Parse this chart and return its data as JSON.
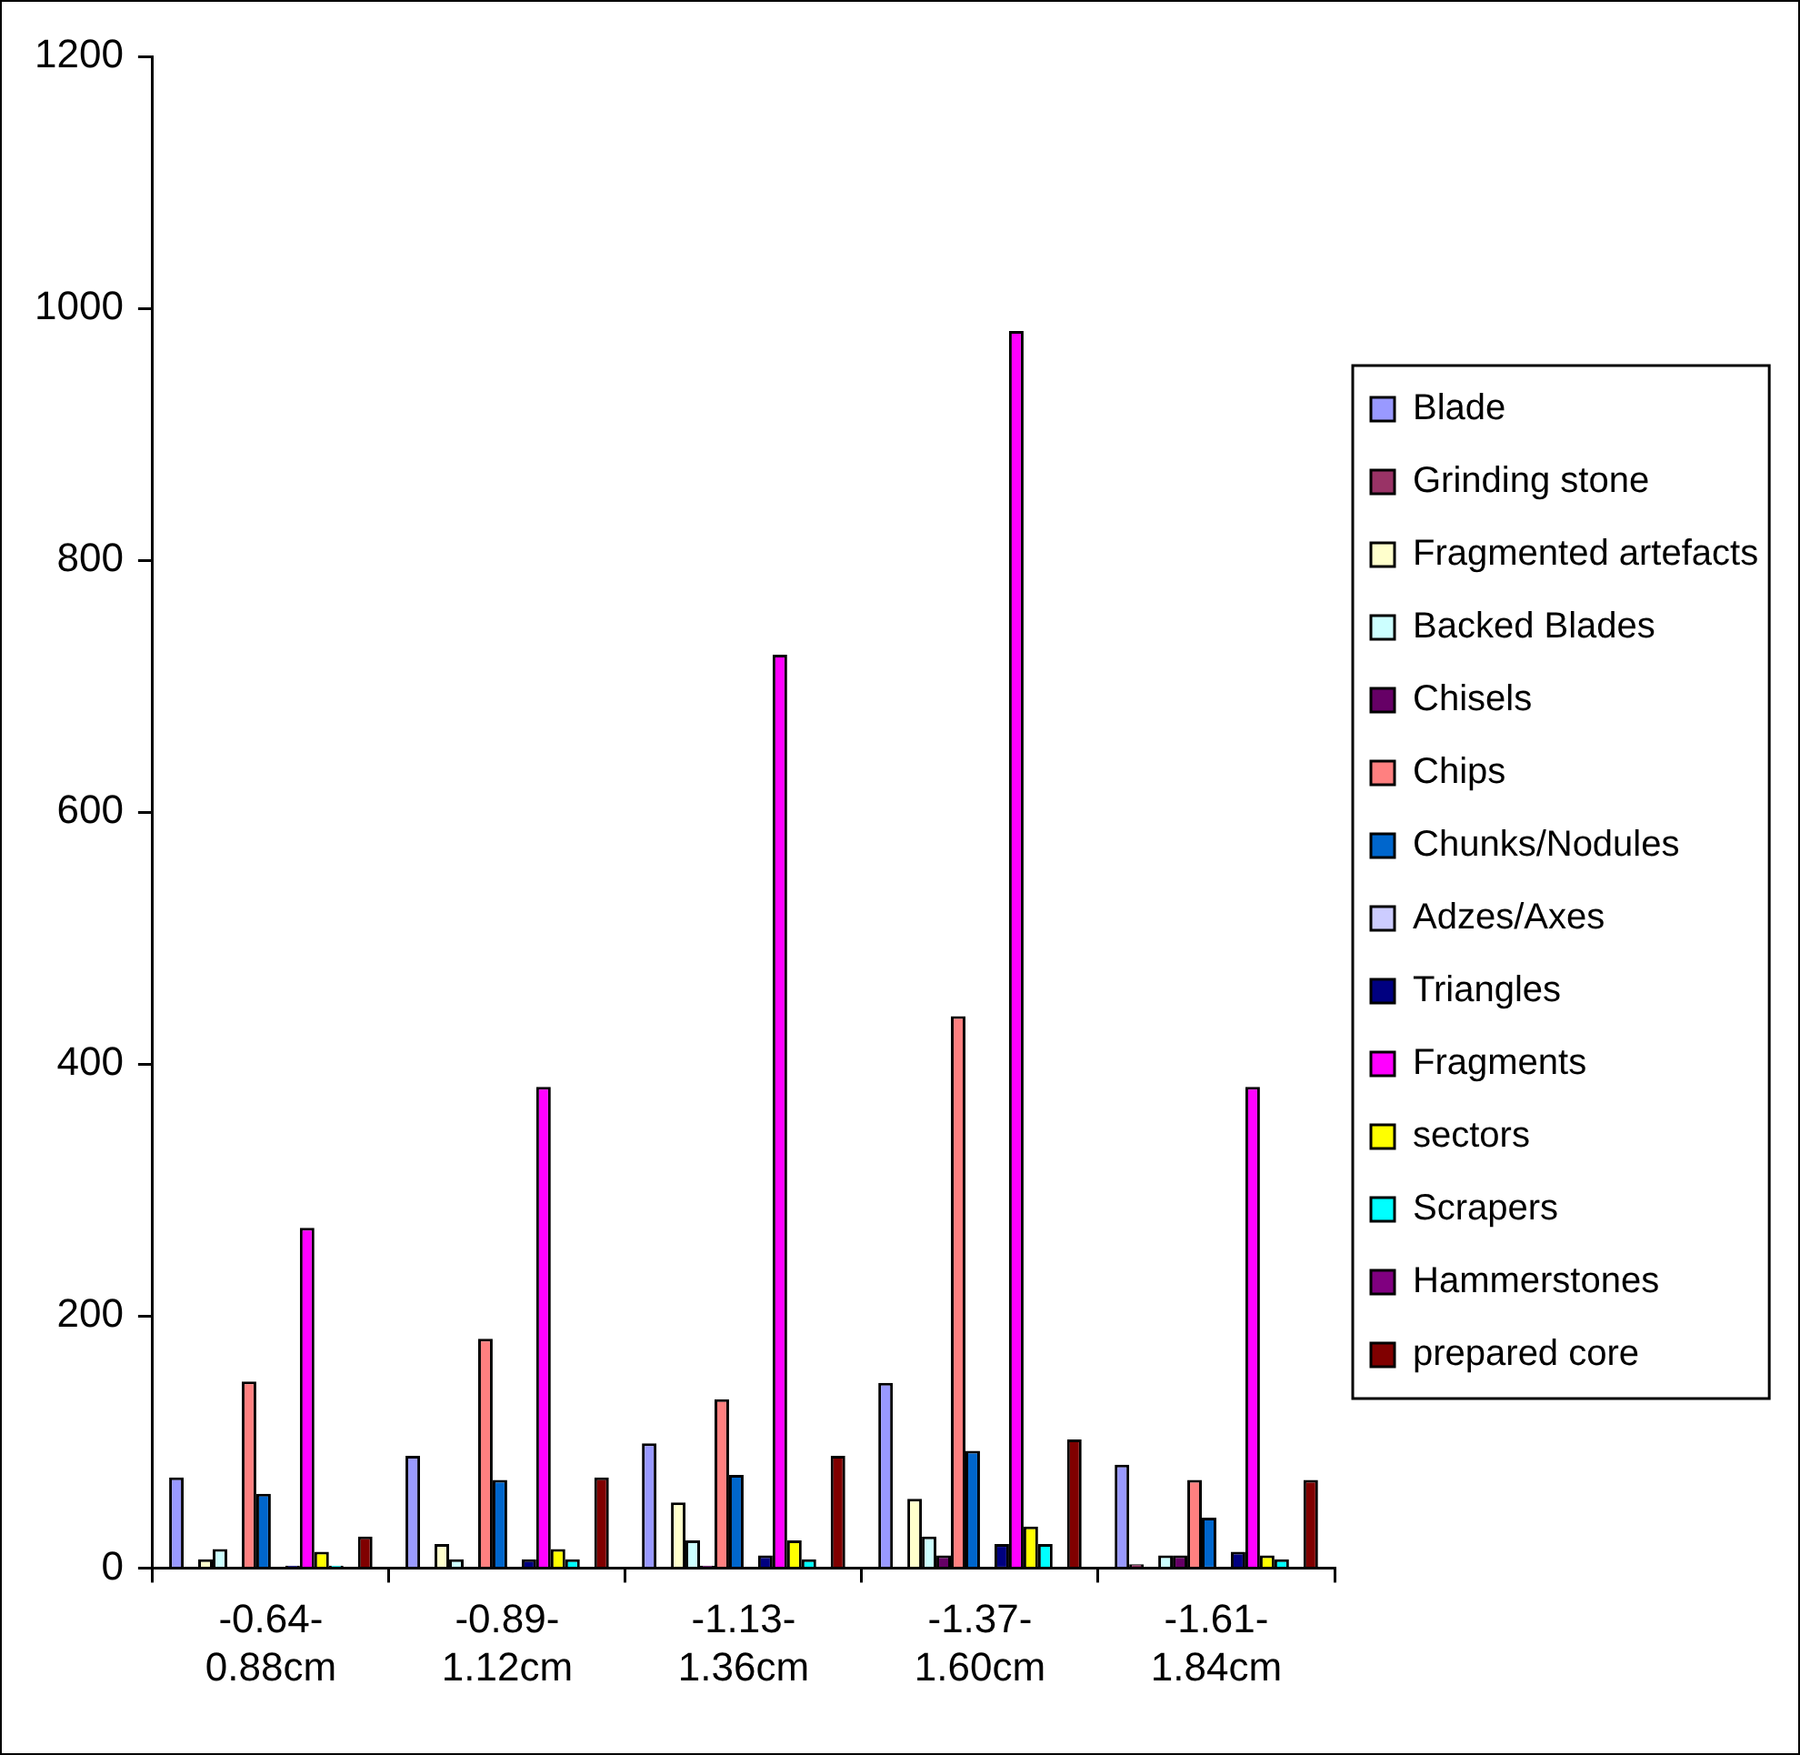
{
  "chart_data": {
    "type": "bar",
    "categories": [
      "-0.64-0.88cm",
      "-0.89-1.12cm",
      "-1.13-1.36cm",
      "-1.37-1.60cm",
      "-1.61-1.84cm"
    ],
    "series": [
      {
        "name": "Blade",
        "color": "#9999ff",
        "values": [
          72,
          89,
          99,
          147,
          82
        ]
      },
      {
        "name": "Grinding stone",
        "color": "#993366",
        "values": [
          null,
          null,
          null,
          null,
          3
        ]
      },
      {
        "name": "Fragmented artefacts",
        "color": "#ffffcc",
        "values": [
          7,
          19,
          52,
          55,
          null
        ]
      },
      {
        "name": "Backed Blades",
        "color": "#ccffff",
        "values": [
          15,
          7,
          22,
          25,
          10
        ]
      },
      {
        "name": "Chisels",
        "color": "#660066",
        "values": [
          null,
          null,
          2,
          10,
          10
        ]
      },
      {
        "name": "Chips",
        "color": "#ff8080",
        "values": [
          148,
          182,
          134,
          438,
          70
        ]
      },
      {
        "name": "Chunks/Nodules",
        "color": "#0066cc",
        "values": [
          59,
          70,
          74,
          93,
          40
        ]
      },
      {
        "name": "Adzes/Axes",
        "color": "#ccccff",
        "values": [
          null,
          null,
          null,
          null,
          null
        ]
      },
      {
        "name": "Triangles",
        "color": "#000080",
        "values": [
          2,
          7,
          10,
          19,
          13
        ]
      },
      {
        "name": "Fragments",
        "color": "#ff00ff",
        "values": [
          270,
          382,
          725,
          982,
          382
        ]
      },
      {
        "name": "sectors",
        "color": "#ffff00",
        "values": [
          13,
          15,
          22,
          33,
          10
        ]
      },
      {
        "name": "Scrapers",
        "color": "#00ffff",
        "values": [
          2,
          7,
          7,
          19,
          7
        ]
      },
      {
        "name": "Hammerstones",
        "color": "#800080",
        "values": [
          null,
          null,
          null,
          null,
          null
        ]
      },
      {
        "name": "prepared core",
        "color": "#800000",
        "values": [
          25,
          72,
          89,
          102,
          70
        ]
      }
    ],
    "ylim": [
      0,
      1200
    ],
    "yticks": [
      0,
      200,
      400,
      600,
      800,
      1000,
      1200
    ],
    "grid": false,
    "legend": "right"
  }
}
